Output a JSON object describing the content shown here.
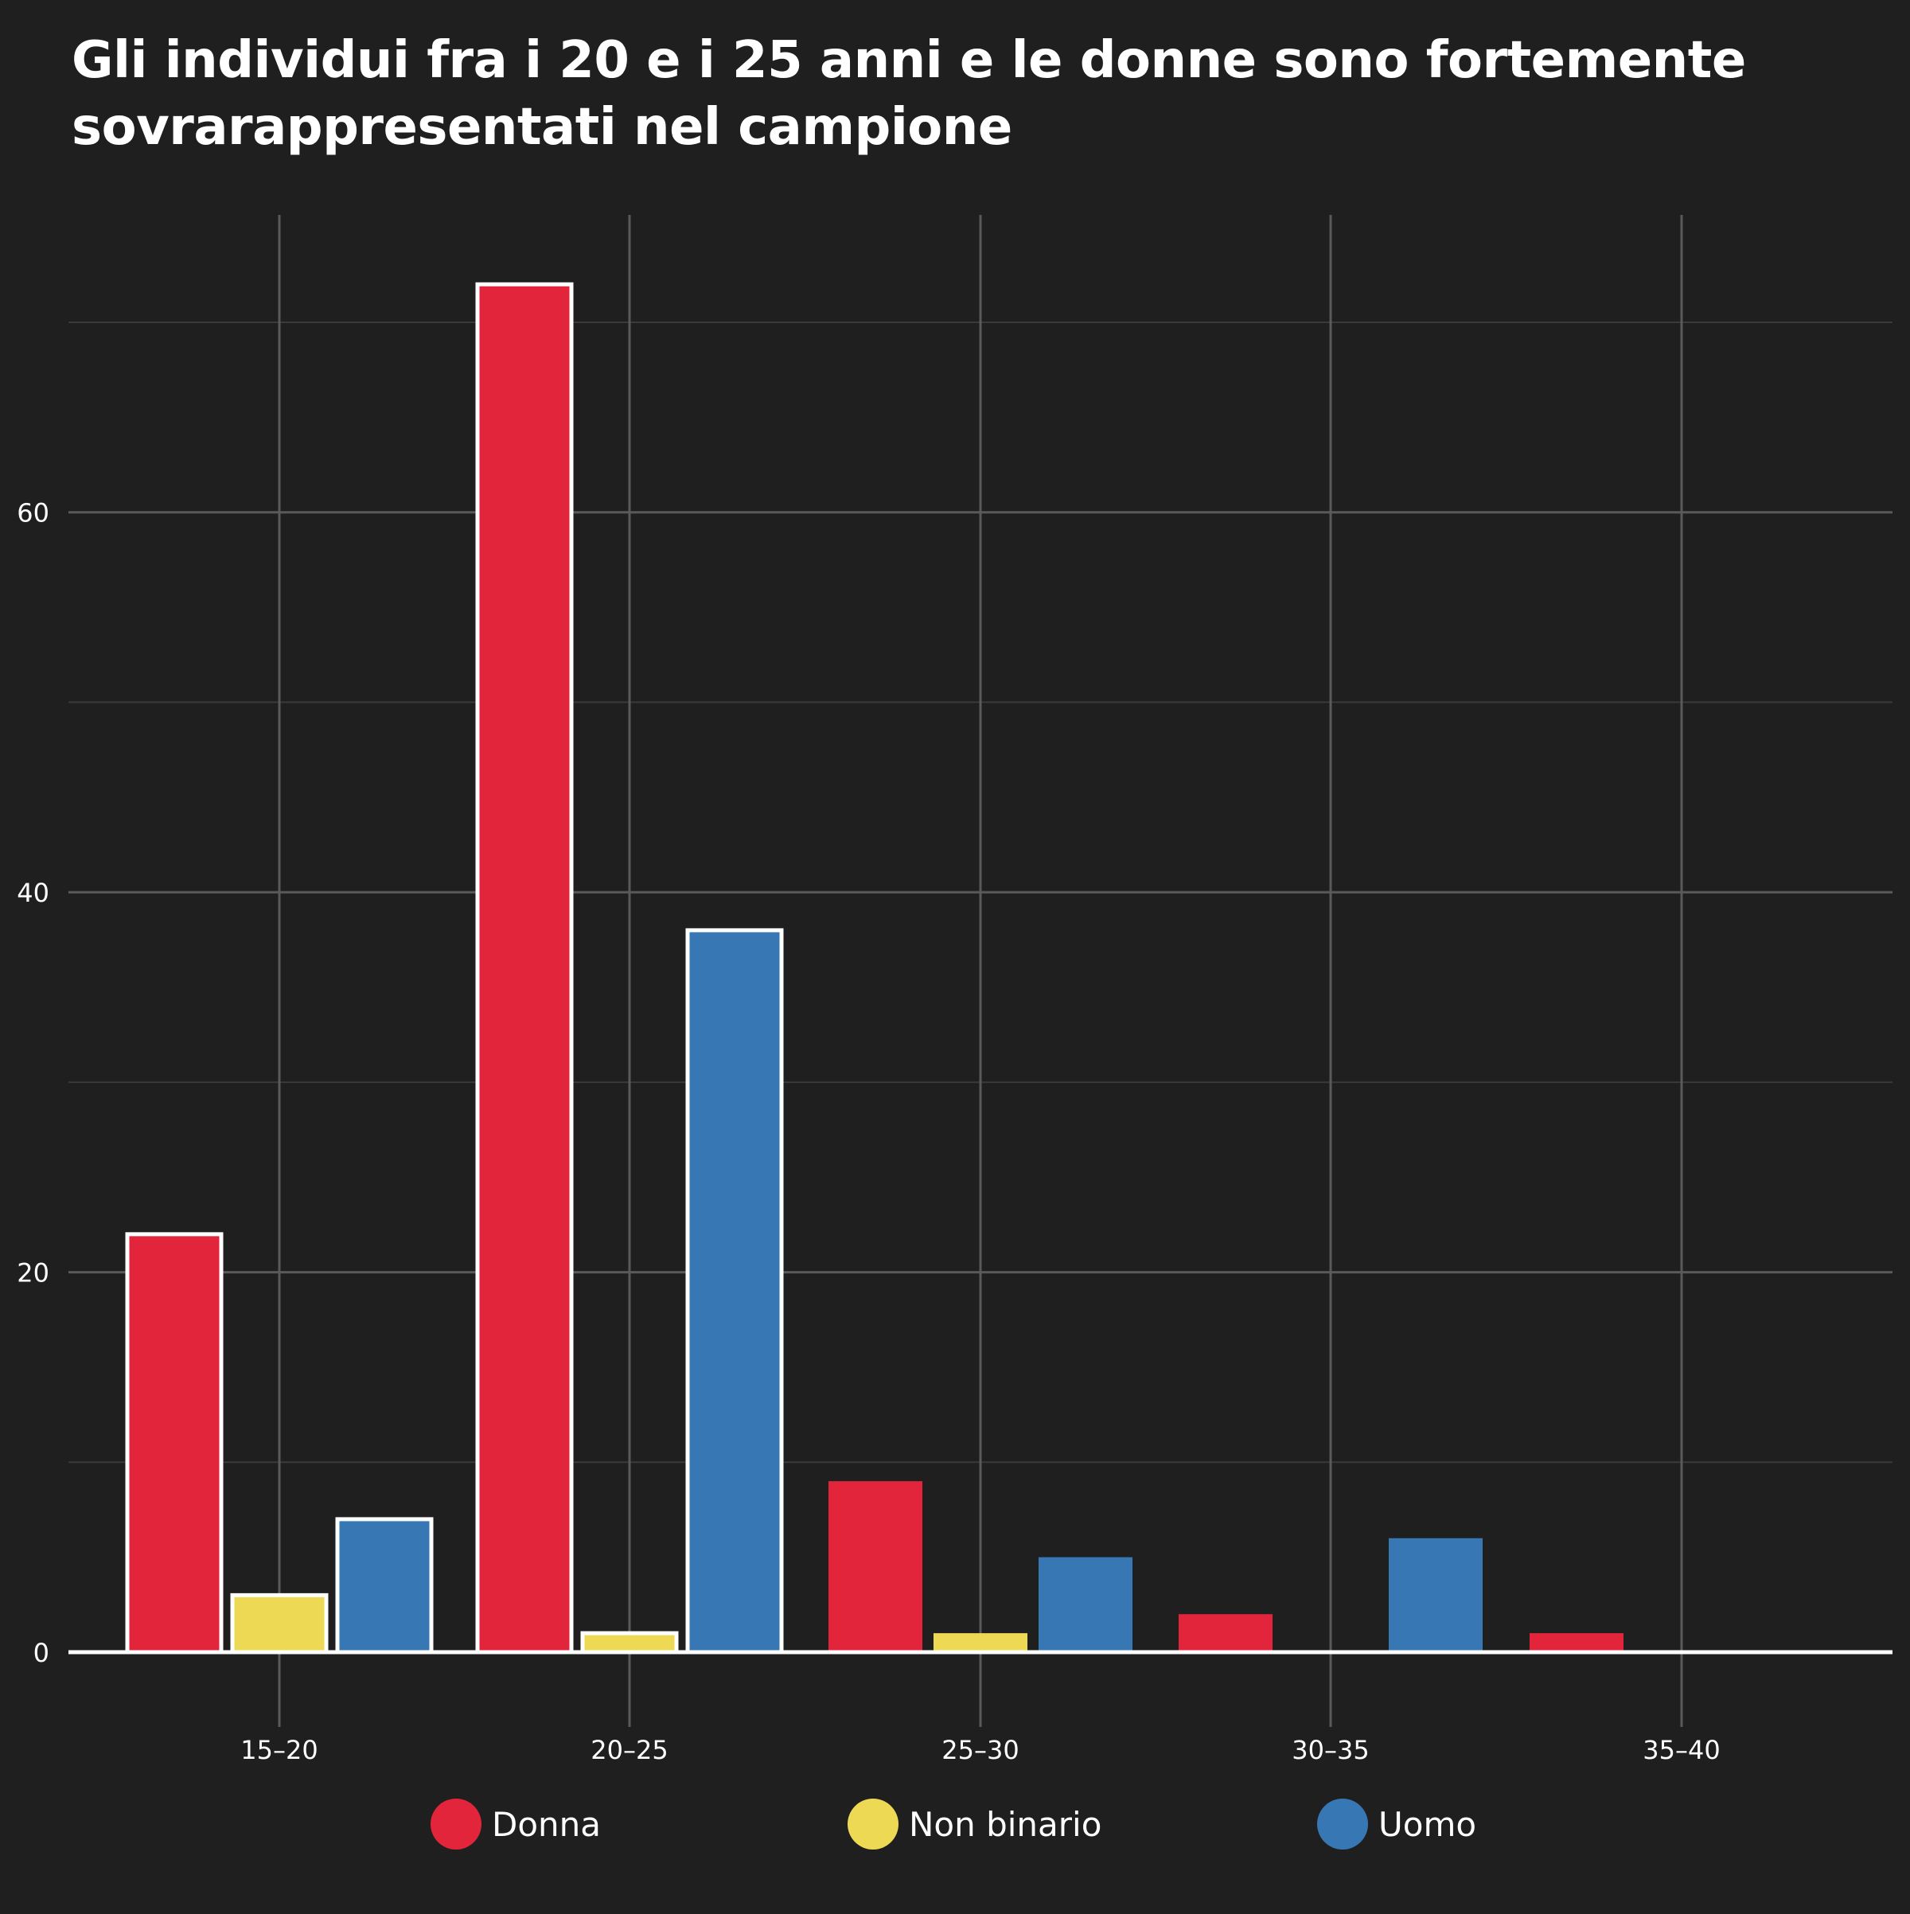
{
  "title_lines": [
    "Gli individui fra i 20 e i 25 anni e le donne sono fortemente",
    "sovrarappresentati nel campione"
  ],
  "colors": {
    "background": "#1f1f1f",
    "grid_major": "#5a5a5a",
    "grid_minor": "#3a3a3a",
    "axis": "#ffffff",
    "highlight_outline": "#ffffff"
  },
  "chart_data": {
    "type": "bar",
    "title": "Gli individui fra i 20 e i 25 anni e le donne sono fortemente sovrarappresentati nel campione",
    "xlabel": "",
    "ylabel": "",
    "categories": [
      "15–20",
      "20–25",
      "25–30",
      "30–35",
      "35–40"
    ],
    "series": [
      {
        "name": "Donna",
        "color": "#e3253c",
        "values": [
          22,
          72,
          9,
          2,
          1
        ]
      },
      {
        "name": "Non binario",
        "color": "#eed955",
        "values": [
          3,
          1,
          1,
          null,
          null
        ]
      },
      {
        "name": "Uomo",
        "color": "#3677b4",
        "values": [
          7,
          38,
          5,
          6,
          null
        ]
      }
    ],
    "highlighted_categories": [
      "15–20",
      "20–25"
    ],
    "ylim": [
      0,
      75
    ],
    "yticks": [
      0,
      20,
      40,
      60
    ],
    "minor_yticks": [
      10,
      30,
      50,
      70
    ],
    "grid": true,
    "legend_position": "bottom-center"
  }
}
